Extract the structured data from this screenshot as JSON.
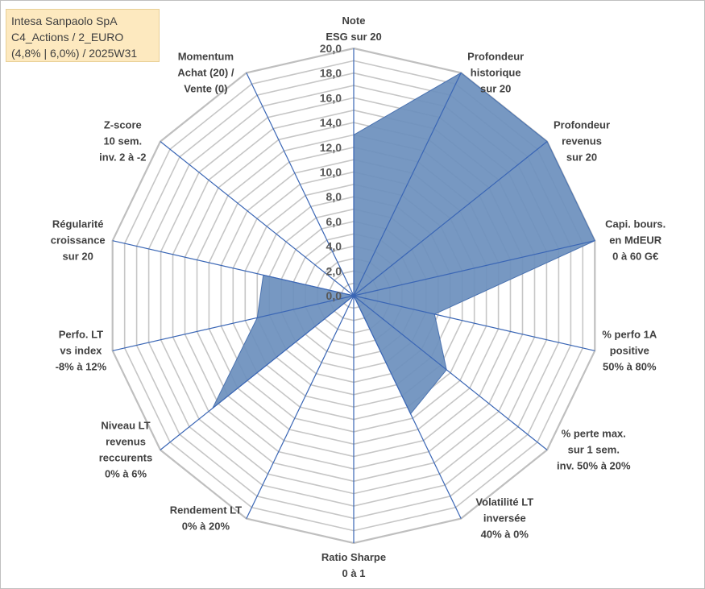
{
  "title_box": {
    "line1": "Intesa Sanpaolo SpA",
    "line2": "C4_Actions / 2_EURO",
    "line3": "(4,8% | 6,0%) / 2025W31"
  },
  "colors": {
    "fill": "#6b8fbd",
    "stroke": "#4a72b0",
    "spoke": "#3a66b5",
    "grid": "#c6c6c6",
    "grid_outer": "#bfbfbf",
    "text": "#404040"
  },
  "chart_data": {
    "type": "radar",
    "title": "",
    "rmin": 0,
    "rmax": 20,
    "grid": true,
    "ticks": [
      "0,0",
      "2,0",
      "4,0",
      "6,0",
      "8,0",
      "10,0",
      "12,0",
      "14,0",
      "16,0",
      "18,0",
      "20,0"
    ],
    "axes": [
      [
        "Note",
        "ESG sur 20"
      ],
      [
        "Profondeur",
        "historique",
        "sur 20"
      ],
      [
        "Profondeur",
        "revenus",
        "sur 20"
      ],
      [
        "Capi. bours.",
        "en MdEUR",
        "0 à 60 G€"
      ],
      [
        "% perfo 1A",
        "positive",
        "50% à 80%"
      ],
      [
        "% perte max.",
        "sur 1 sem.",
        "inv. 50% à 20%"
      ],
      [
        "Volatilité LT",
        "inversée",
        "40% à 0%"
      ],
      [
        "Ratio Sharpe",
        "0 à 1"
      ],
      [
        "Rendement LT",
        "0% à 20%"
      ],
      [
        "Niveau LT",
        "revenus",
        "reccurents",
        "0% à 6%"
      ],
      [
        "Perfo. LT",
        "vs index",
        "-8% à 12%"
      ],
      [
        "Régularité",
        "croissance",
        "sur 20"
      ],
      [
        "Z-score",
        "10 sem.",
        "inv. 2 à -2"
      ],
      [
        "Momentum",
        "Achat (20) /",
        "Vente (0)"
      ]
    ],
    "values": [
      13.0,
      20.0,
      20.0,
      20.0,
      6.7,
      9.6,
      10.6,
      0,
      0,
      14.6,
      8.0,
      7.5,
      0,
      0
    ]
  }
}
